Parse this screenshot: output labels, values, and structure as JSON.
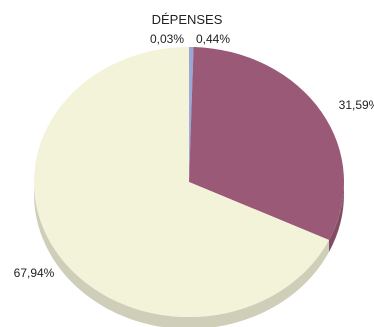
{
  "chart_data": {
    "type": "pie",
    "title": "DÉPENSES",
    "slices": [
      {
        "label": "0,03%",
        "value": 0.03,
        "color": "#8b5d6e"
      },
      {
        "label": "0,44%",
        "value": 0.44,
        "color": "#98a7d8"
      },
      {
        "label": "31,59%",
        "value": 31.59,
        "color": "#9a5977"
      },
      {
        "label": "67,94%",
        "value": 67.94,
        "color": "#f3f3da"
      }
    ],
    "start": "12 o'clock",
    "direction": "clockwise",
    "effect": "3d-tilt"
  }
}
